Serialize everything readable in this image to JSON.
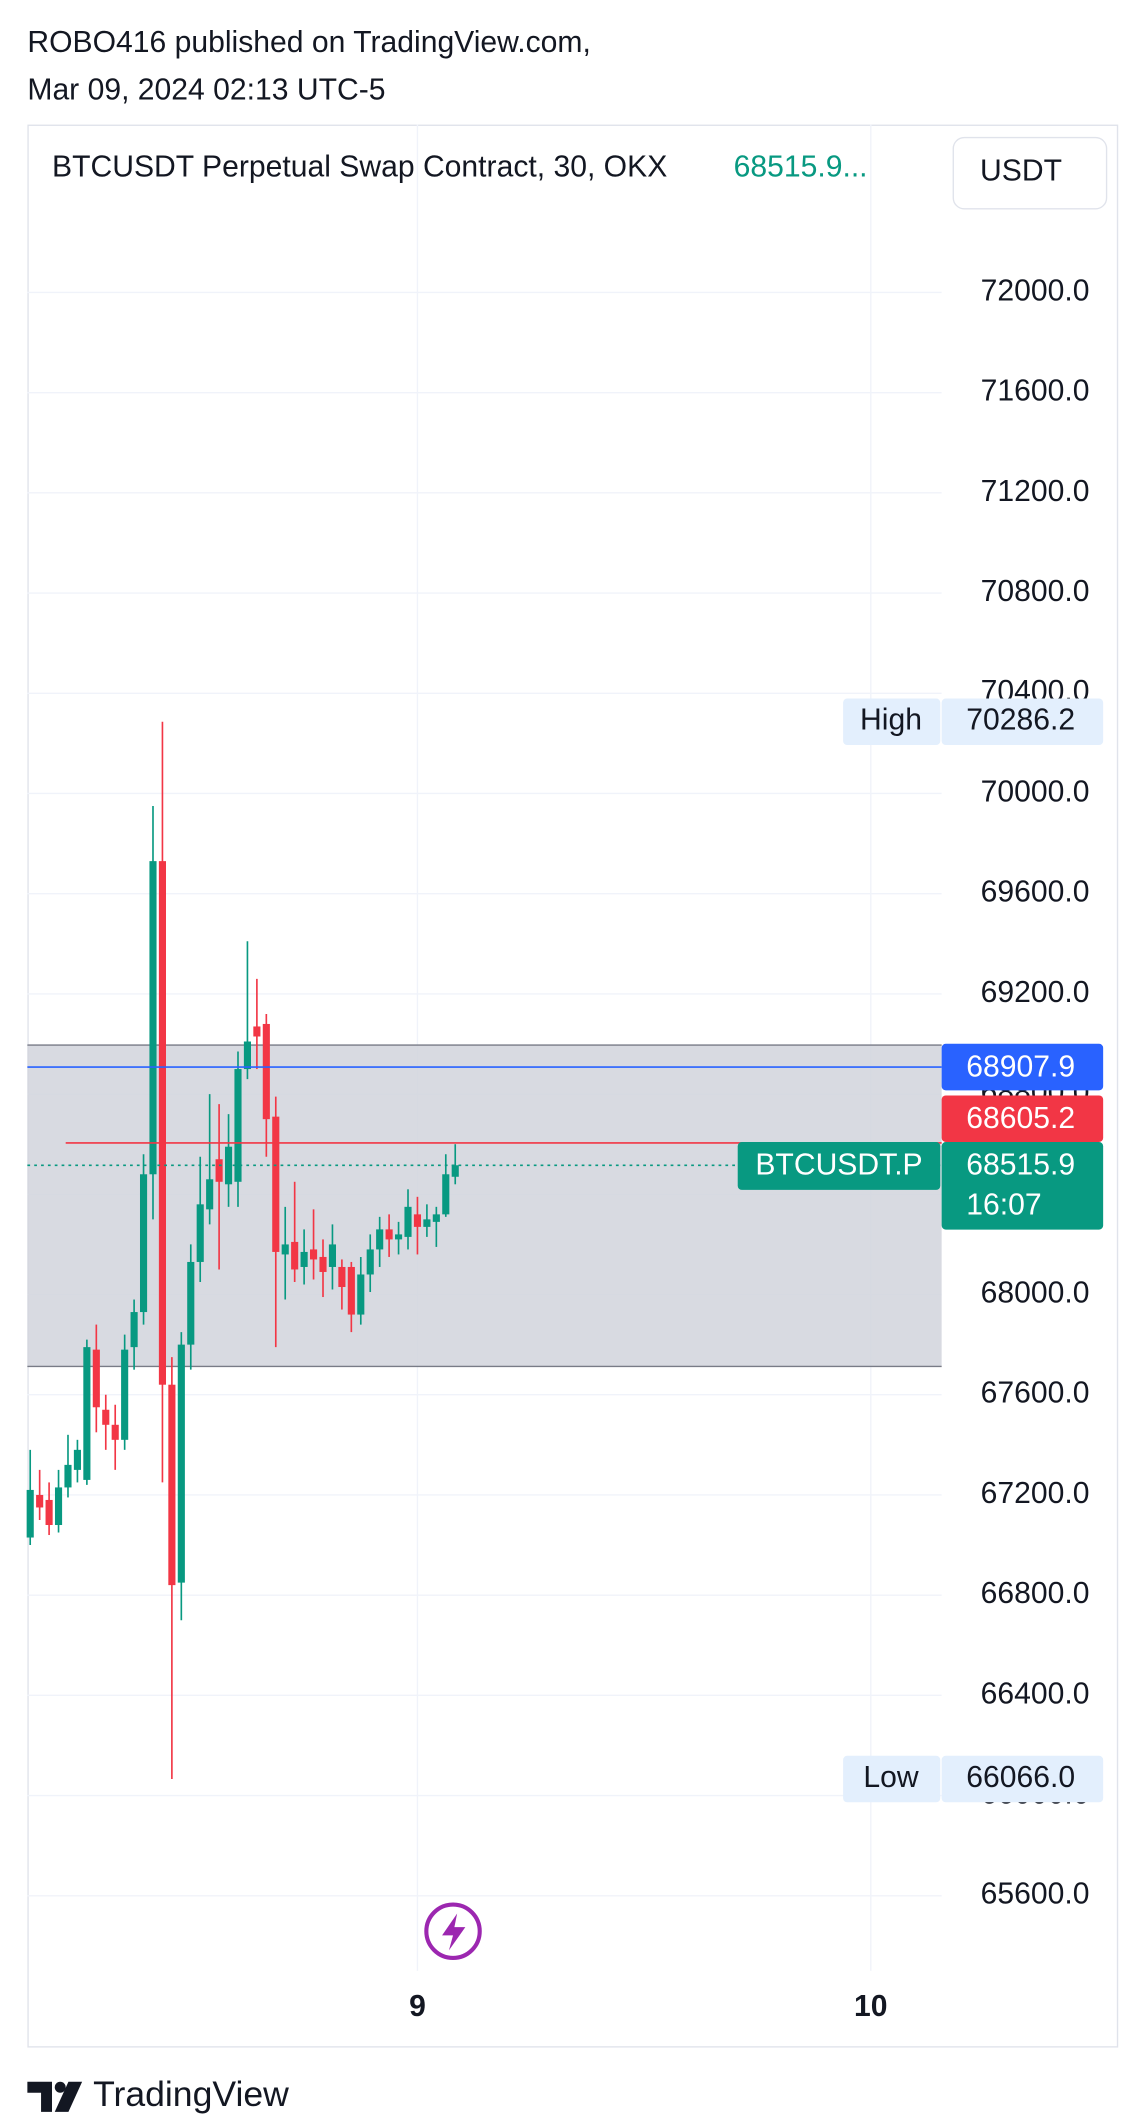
{
  "header": {
    "publisher": "ROBO416 published on TradingView.com,",
    "date": "Mar 09, 2024 02:13 UTC-5"
  },
  "footer": {
    "brand": "TradingView"
  },
  "chart_data": {
    "type": "candlestick",
    "title": "BTCUSDT Perpetual Swap Contract, 30, OKX",
    "last_price_label": "68515.9...",
    "currency": "USDT",
    "open": [
      67030,
      67200,
      67180,
      67080,
      67230,
      67300,
      67260,
      67780,
      67540,
      67480,
      67420,
      67790,
      67930,
      68480,
      69730,
      67640,
      66850,
      67800,
      68130,
      68340,
      68540,
      68440,
      68450,
      68900,
      69070,
      69080,
      68710,
      68160,
      68210,
      68110,
      68180,
      68150,
      68110,
      68110,
      68110,
      67920,
      68080,
      68180,
      68260,
      68220,
      68230,
      68320,
      68270,
      68290,
      68320,
      68470
    ],
    "high": [
      67380,
      67300,
      67250,
      67300,
      67440,
      67420,
      67820,
      67880,
      67600,
      67560,
      67840,
      67980,
      68560,
      69950,
      70286.2,
      67750,
      67850,
      68200,
      68550,
      68800,
      68760,
      68720,
      68970,
      69410,
      69260,
      69120,
      68790,
      68350,
      68450,
      68260,
      68340,
      68220,
      68280,
      68140,
      68130,
      68150,
      68240,
      68310,
      68320,
      68290,
      68420,
      68390,
      68360,
      68350,
      68560,
      68600
    ],
    "low": [
      67000,
      67100,
      67040,
      67050,
      67190,
      67250,
      67240,
      67450,
      67380,
      67300,
      67380,
      67700,
      67880,
      68300,
      67250,
      66066,
      66700,
      67700,
      68050,
      68280,
      68100,
      68350,
      68350,
      68860,
      68900,
      68550,
      67790,
      67980,
      68050,
      68040,
      68060,
      67990,
      68020,
      67940,
      67850,
      67880,
      68010,
      68110,
      68150,
      68160,
      68180,
      68160,
      68230,
      68190,
      68310,
      68440
    ],
    "close": [
      67220,
      67150,
      67080,
      67230,
      67320,
      67380,
      67790,
      67550,
      67480,
      67420,
      67780,
      67930,
      68480,
      69730,
      67640,
      66840,
      67800,
      68130,
      68360,
      68460,
      68450,
      68590,
      68900,
      69010,
      69030,
      68700,
      68170,
      68200,
      68100,
      68170,
      68140,
      68090,
      68200,
      68030,
      67920,
      68080,
      68180,
      68260,
      68220,
      68240,
      68350,
      68270,
      68300,
      68320,
      68480,
      68515.9
    ],
    "up_color": "#089981",
    "down_color": "#f23645",
    "xlim": [
      -0.3,
      96.5
    ],
    "xticks": [
      {
        "value": 41,
        "label": "9"
      },
      {
        "value": 89,
        "label": "10"
      }
    ],
    "ylim": [
      65300,
      72670
    ],
    "yticks": [
      {
        "value": 65600,
        "label": "65600.0"
      },
      {
        "value": 66000,
        "label": "66000.0"
      },
      {
        "value": 66400,
        "label": "66400.0"
      },
      {
        "value": 66800,
        "label": "66800.0"
      },
      {
        "value": 67200,
        "label": "67200.0"
      },
      {
        "value": 67600,
        "label": "67600.0"
      },
      {
        "value": 68000,
        "label": "68000.0"
      },
      {
        "value": 68400,
        "label": "68400.0"
      },
      {
        "value": 68800,
        "label": "68800.0"
      },
      {
        "value": 69200,
        "label": "69200.0"
      },
      {
        "value": 69600,
        "label": "69600.0"
      },
      {
        "value": 70000,
        "label": "70000.0"
      },
      {
        "value": 70400,
        "label": "70400.0"
      },
      {
        "value": 70800,
        "label": "70800.0"
      },
      {
        "value": 71200,
        "label": "71200.0"
      },
      {
        "value": 71600,
        "label": "71600.0"
      },
      {
        "value": 72000,
        "label": "72000.0"
      }
    ],
    "grid": true,
    "zone": {
      "low": 67713,
      "high": 68996,
      "color": "#d1d4dc"
    },
    "price_lines": [
      {
        "value": 68907.9,
        "label": "68907.9",
        "color": "#2962ff",
        "style": "solid"
      },
      {
        "value": 68605.2,
        "label": "68605.2",
        "color": "#f23645",
        "style": "solid"
      },
      {
        "value": 68515.9,
        "label": "68515.9",
        "color": "#089981",
        "style": "dotted",
        "name": "BTCUSDT.P",
        "countdown": "16:07"
      }
    ],
    "markers": [
      {
        "name": "High",
        "value": 70286.2,
        "label": "70286.2"
      },
      {
        "name": "Low",
        "value": 66066,
        "label": "66066.0"
      }
    ]
  }
}
